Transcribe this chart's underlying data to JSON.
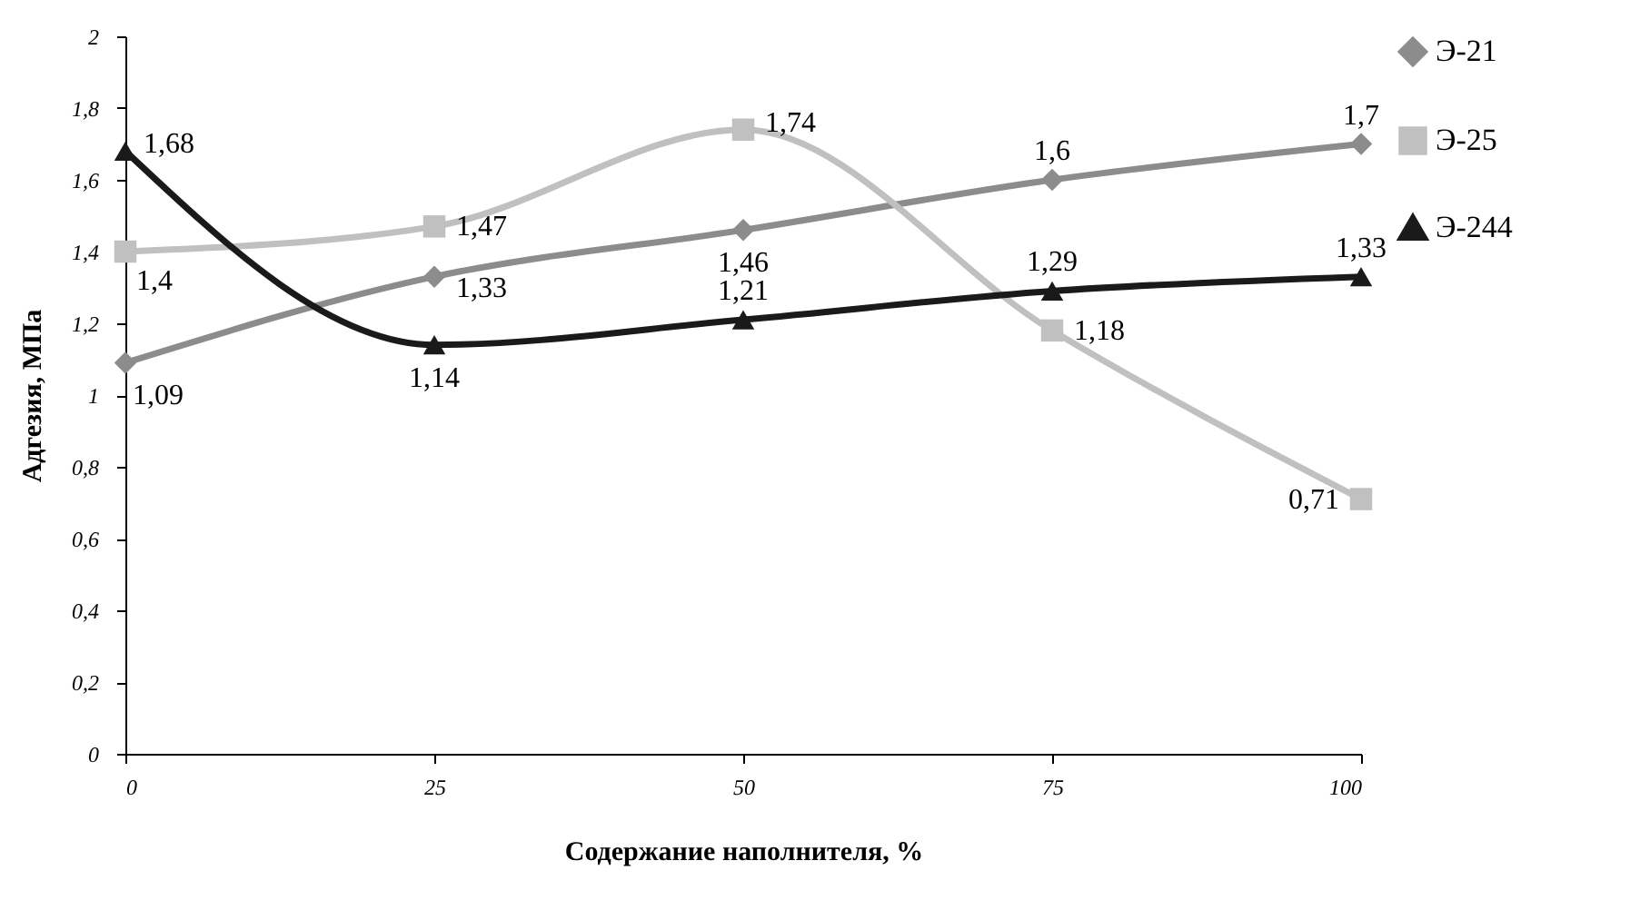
{
  "chart_data": {
    "type": "line",
    "xlabel": "Содержание наполнителя, %",
    "ylabel": "Адгезия, МПа",
    "x": [
      0,
      25,
      50,
      75,
      100
    ],
    "xlim": [
      0,
      100
    ],
    "xticks": [
      0,
      25,
      50,
      75,
      100
    ],
    "ylim": [
      0,
      2
    ],
    "yticks": [
      0,
      {
        "value": 0.2,
        "label": "0,2"
      },
      {
        "value": 0.4,
        "label": "0,4"
      },
      {
        "value": 0.6,
        "label": "0,6"
      },
      {
        "value": 0.8,
        "label": "0,8"
      },
      1,
      {
        "value": 1.2,
        "label": "1,2"
      },
      {
        "value": 1.4,
        "label": "1,4"
      },
      {
        "value": 1.6,
        "label": "1,6"
      },
      {
        "value": 1.8,
        "label": "1,8"
      },
      2
    ],
    "series": [
      {
        "name": "Э-21",
        "color": "#8c8c8c",
        "marker": "diamond",
        "values": [
          1.09,
          1.33,
          1.46,
          1.6,
          1.7
        ],
        "value_labels": [
          "1,09",
          "1,33",
          "1,46",
          "1,6",
          "1,7"
        ]
      },
      {
        "name": "Э-25",
        "color": "#c0c0c0",
        "marker": "square",
        "values": [
          1.4,
          1.47,
          1.74,
          1.18,
          0.71
        ],
        "value_labels": [
          "1,4",
          "1,47",
          "1,74",
          "1,18",
          "0,71"
        ]
      },
      {
        "name": "Э-244",
        "color": "#1a1a1a",
        "marker": "triangle",
        "values": [
          1.68,
          1.14,
          1.21,
          1.29,
          1.33
        ],
        "value_labels": [
          "1,68",
          "1,14",
          "1,21",
          "1,29",
          "1,33"
        ]
      }
    ],
    "grid": false,
    "legend": "right",
    "line_style": "solid"
  }
}
